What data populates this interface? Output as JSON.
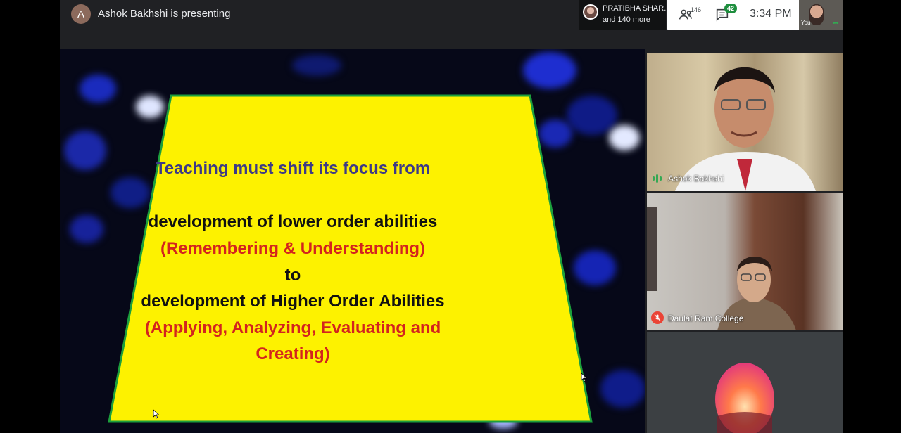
{
  "header": {
    "presenter_initial": "A",
    "presenter_text": "Ashok Bakhshi is presenting",
    "participants_chip": {
      "name": "PRATIBHA SHAR...",
      "more": "and 140 more"
    },
    "participants_count": "146",
    "chat_badge": "42",
    "clock": "3:34 PM",
    "self_label": "You"
  },
  "slide": {
    "heading": "Teaching must shift its focus from",
    "line1": "development of lower order abilities",
    "line2": "(Remembering & Understanding)",
    "line3": "to",
    "line4": "development of Higher Order Abilities",
    "line5": "(Applying, Analyzing, Evaluating and",
    "line6": "Creating)",
    "colors": {
      "panel": "#fdf200",
      "heading": "#3d3a86",
      "body": "#111111",
      "accent": "#d3241e",
      "border": "#1c9f3c"
    }
  },
  "tiles": [
    {
      "name": "Ashok Bakhshi",
      "status": "speaking"
    },
    {
      "name": "Daulat Ram College",
      "status": "muted"
    },
    {
      "name": "",
      "status": "avatar-only"
    }
  ],
  "icons": {
    "participants": "people-icon",
    "chat": "chat-icon",
    "speaking": "audio-wave-icon",
    "muted": "mic-off-icon"
  },
  "colors": {
    "app_bg": "#202124",
    "speaking": "#34a853",
    "muted": "#ea4335",
    "badge": "#1e8e3e"
  }
}
